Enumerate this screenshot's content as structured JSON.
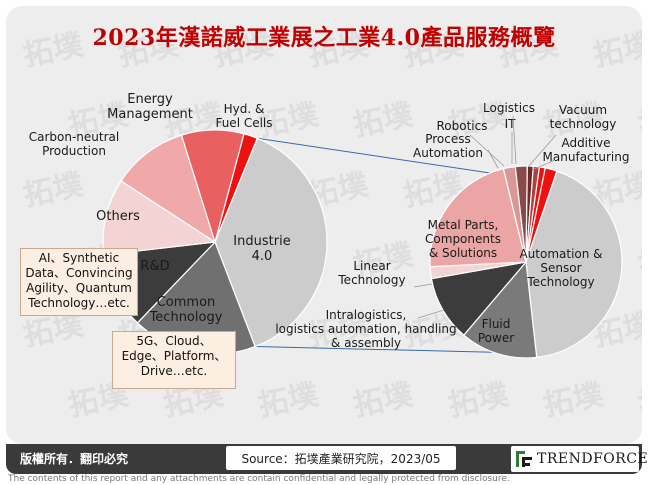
{
  "title": "2023年漢諾威工業展之工業4.0產品服務概覽",
  "watermark_text": "拓墣",
  "chart_data": [
    {
      "type": "pie",
      "name": "main",
      "slices": [
        {
          "label": "Hyd. & Fuel Cells",
          "value": 2,
          "color": "#ee1111"
        },
        {
          "label": "Industrie 4.0",
          "value": 38,
          "color": "#cccccc"
        },
        {
          "label": "Common Technology",
          "value": 18,
          "color": "#707070"
        },
        {
          "label": "R&D",
          "value": 11,
          "color": "#3c3c3c"
        },
        {
          "label": "Others",
          "value": 11,
          "color": "#f3d3d3"
        },
        {
          "label": "Carbon-neutral Production",
          "value": 11,
          "color": "#f0a8a8"
        },
        {
          "label": "Energy Management",
          "value": 9,
          "color": "#e86060"
        }
      ]
    },
    {
      "type": "pie",
      "name": "detail",
      "slices": [
        {
          "label": "Vacuum technology",
          "value": 1,
          "color": "#ee1111"
        },
        {
          "label": "Additive Manufacturing",
          "value": 2,
          "color": "#ee1111"
        },
        {
          "label": "Automation & Sensor Technology",
          "value": 43,
          "color": "#cccccc"
        },
        {
          "label": "Fluid Power",
          "value": 13,
          "color": "#7a7a7a"
        },
        {
          "label": "Intralogistics, logistics automation, handling & assembly",
          "value": 11,
          "color": "#3c3c3c"
        },
        {
          "label": "Linear Technology",
          "value": 2,
          "color": "#f3d3d3"
        },
        {
          "label": "Metal Parts, Components & Solutions",
          "value": 22,
          "color": "#eba5a5"
        },
        {
          "label": "Process Automation",
          "value": 2,
          "color": "#d99898"
        },
        {
          "label": "Robotics",
          "value": 2,
          "color": "#8a4a4a"
        },
        {
          "label": "IT",
          "value": 1,
          "color": "#6e2a2a"
        },
        {
          "label": "Logistics",
          "value": 1,
          "color": "#b04040"
        }
      ]
    }
  ],
  "notes": {
    "rd": "AI、Synthetic Data、Convincing Agility、Quantum Technology…etc.",
    "common": "5G、Cloud、Edge、Platform、Drive…etc."
  },
  "footer": {
    "copyright": "版權所有．翻印必究",
    "source": "Source：拓墣產業研究院，2023/05",
    "logo": "TRENDFORCE",
    "disclaimer": "The contents of this report and any attachments are contain confidential and legally protected from disclosure."
  }
}
